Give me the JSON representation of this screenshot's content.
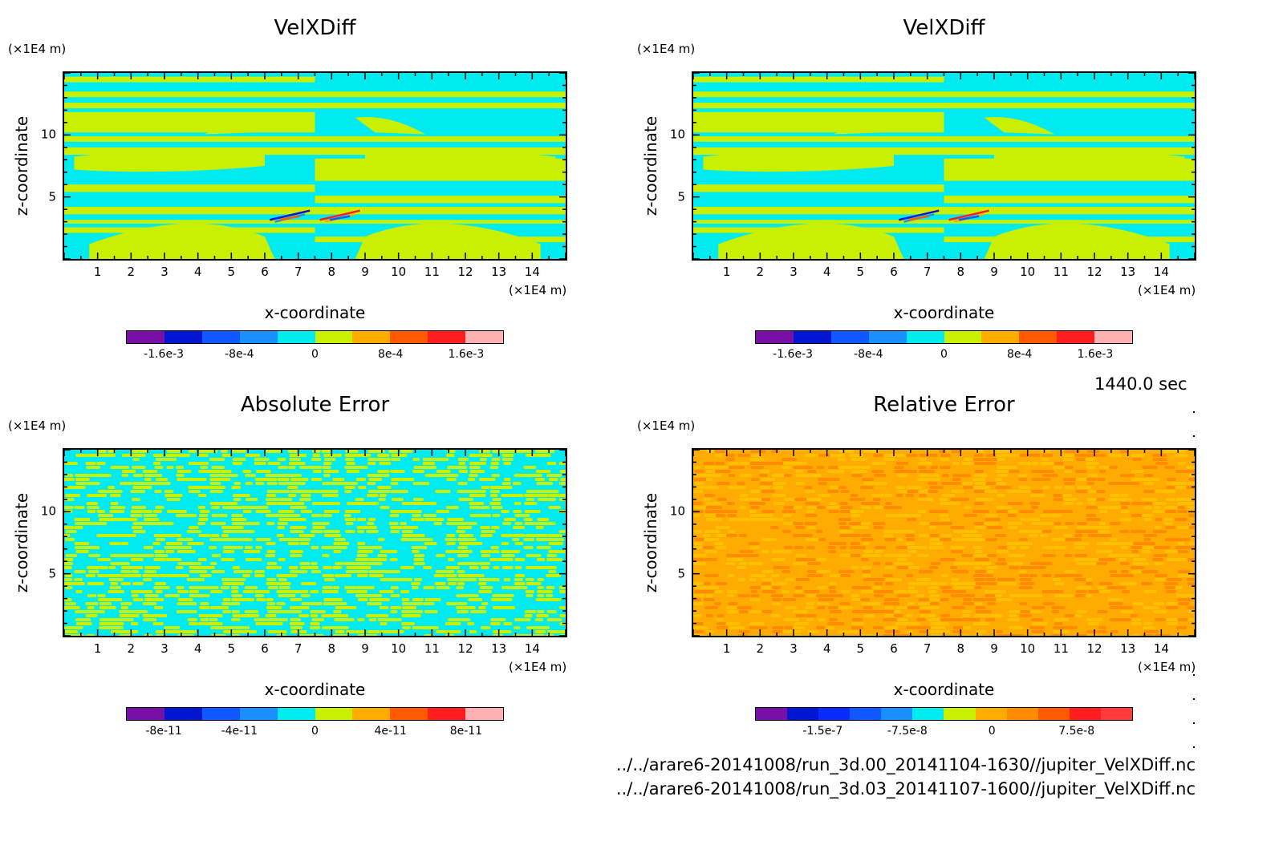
{
  "chart_data": [
    {
      "type": "heatmap",
      "title": "VelXDiff",
      "xlabel": "x-coordinate",
      "ylabel": "z-coordinate",
      "x_unit": "(×1E4 m)",
      "y_unit": "(×1E4 m)",
      "x_ticks": [
        "1",
        "2",
        "3",
        "4",
        "5",
        "6",
        "7",
        "8",
        "9",
        "10",
        "11",
        "12",
        "13",
        "14"
      ],
      "y_ticks": [
        "5",
        "10"
      ],
      "xlim": [
        0,
        15
      ],
      "ylim": [
        0,
        15
      ],
      "pattern": "structured",
      "colorbar": {
        "colors": [
          "#7a0fa8",
          "#0016d0",
          "#1058ff",
          "#1a90ff",
          "#00ebf0",
          "#c8f000",
          "#ffab00",
          "#ff5a00",
          "#ff1e1e",
          "#ffb0b0"
        ],
        "tick_labels": [
          "-1.6e-3",
          "-8e-4",
          "0",
          "8e-4",
          "1.6e-3"
        ],
        "tick_values": [
          -0.0016,
          -0.0008,
          0,
          0.0008,
          0.0016
        ],
        "range": [
          -0.002,
          0.002
        ]
      }
    },
    {
      "type": "heatmap",
      "title": "VelXDiff",
      "xlabel": "x-coordinate",
      "ylabel": "z-coordinate",
      "x_unit": "(×1E4 m)",
      "y_unit": "(×1E4 m)",
      "x_ticks": [
        "1",
        "2",
        "3",
        "4",
        "5",
        "6",
        "7",
        "8",
        "9",
        "10",
        "11",
        "12",
        "13",
        "14"
      ],
      "y_ticks": [
        "5",
        "10"
      ],
      "xlim": [
        0,
        15
      ],
      "ylim": [
        0,
        15
      ],
      "pattern": "structured",
      "colorbar": {
        "colors": [
          "#7a0fa8",
          "#0016d0",
          "#1058ff",
          "#1a90ff",
          "#00ebf0",
          "#c8f000",
          "#ffab00",
          "#ff5a00",
          "#ff1e1e",
          "#ffb0b0"
        ],
        "tick_labels": [
          "-1.6e-3",
          "-8e-4",
          "0",
          "8e-4",
          "1.6e-3"
        ],
        "tick_values": [
          -0.0016,
          -0.0008,
          0,
          0.0008,
          0.0016
        ],
        "range": [
          -0.002,
          0.002
        ]
      }
    },
    {
      "type": "heatmap",
      "title": "Absolute Error",
      "xlabel": "x-coordinate",
      "ylabel": "z-coordinate",
      "x_unit": "(×1E4 m)",
      "y_unit": "(×1E4 m)",
      "x_ticks": [
        "1",
        "2",
        "3",
        "4",
        "5",
        "6",
        "7",
        "8",
        "9",
        "10",
        "11",
        "12",
        "13",
        "14"
      ],
      "y_ticks": [
        "5",
        "10"
      ],
      "xlim": [
        0,
        15
      ],
      "ylim": [
        0,
        15
      ],
      "pattern": "noise",
      "noise_colors": [
        "#00ebf0",
        "#c8f000",
        "#c8f000"
      ],
      "colorbar": {
        "colors": [
          "#7a0fa8",
          "#0016d0",
          "#1058ff",
          "#1a90ff",
          "#00ebf0",
          "#c8f000",
          "#ffab00",
          "#ff5a00",
          "#ff1e1e",
          "#ffb0b0"
        ],
        "tick_labels": [
          "-8e-11",
          "-4e-11",
          "0",
          "4e-11",
          "8e-11"
        ],
        "tick_values": [
          -8e-11,
          -4e-11,
          0,
          4e-11,
          8e-11
        ],
        "range": [
          -1e-10,
          1e-10
        ]
      }
    },
    {
      "type": "heatmap",
      "title": "Relative Error",
      "xlabel": "x-coordinate",
      "ylabel": "z-coordinate",
      "x_unit": "(×1E4 m)",
      "y_unit": "(×1E4 m)",
      "x_ticks": [
        "1",
        "2",
        "3",
        "4",
        "5",
        "6",
        "7",
        "8",
        "9",
        "10",
        "11",
        "12",
        "13",
        "14"
      ],
      "y_ticks": [
        "5",
        "10"
      ],
      "xlim": [
        0,
        15
      ],
      "ylim": [
        0,
        15
      ],
      "pattern": "noise",
      "noise_colors": [
        "#ffab00",
        "#ff8c00",
        "#ffc000"
      ],
      "colorbar": {
        "colors": [
          "#7a0fa8",
          "#0016d0",
          "#0a2bff",
          "#1058ff",
          "#1a90ff",
          "#00ebf0",
          "#c8f000",
          "#ffab00",
          "#ff8c00",
          "#ff5a00",
          "#ff1e1e",
          "#ff3a3a"
        ],
        "tick_labels": [
          "-1.5e-7",
          "-7.5e-8",
          "0",
          "7.5e-8"
        ],
        "tick_values": [
          -1.5e-07,
          -7.5e-08,
          0,
          7.5e-08
        ],
        "range": [
          -2.1e-07,
          1.25e-07
        ]
      }
    }
  ],
  "timestamp": "1440.0 sec",
  "file_paths": [
    "../../arare6-20141008/run_3d.00_20141104-1630//jupiter_VelXDiff.nc",
    "../../arare6-20141008/run_3d.03_20141107-1600//jupiter_VelXDiff.nc"
  ]
}
